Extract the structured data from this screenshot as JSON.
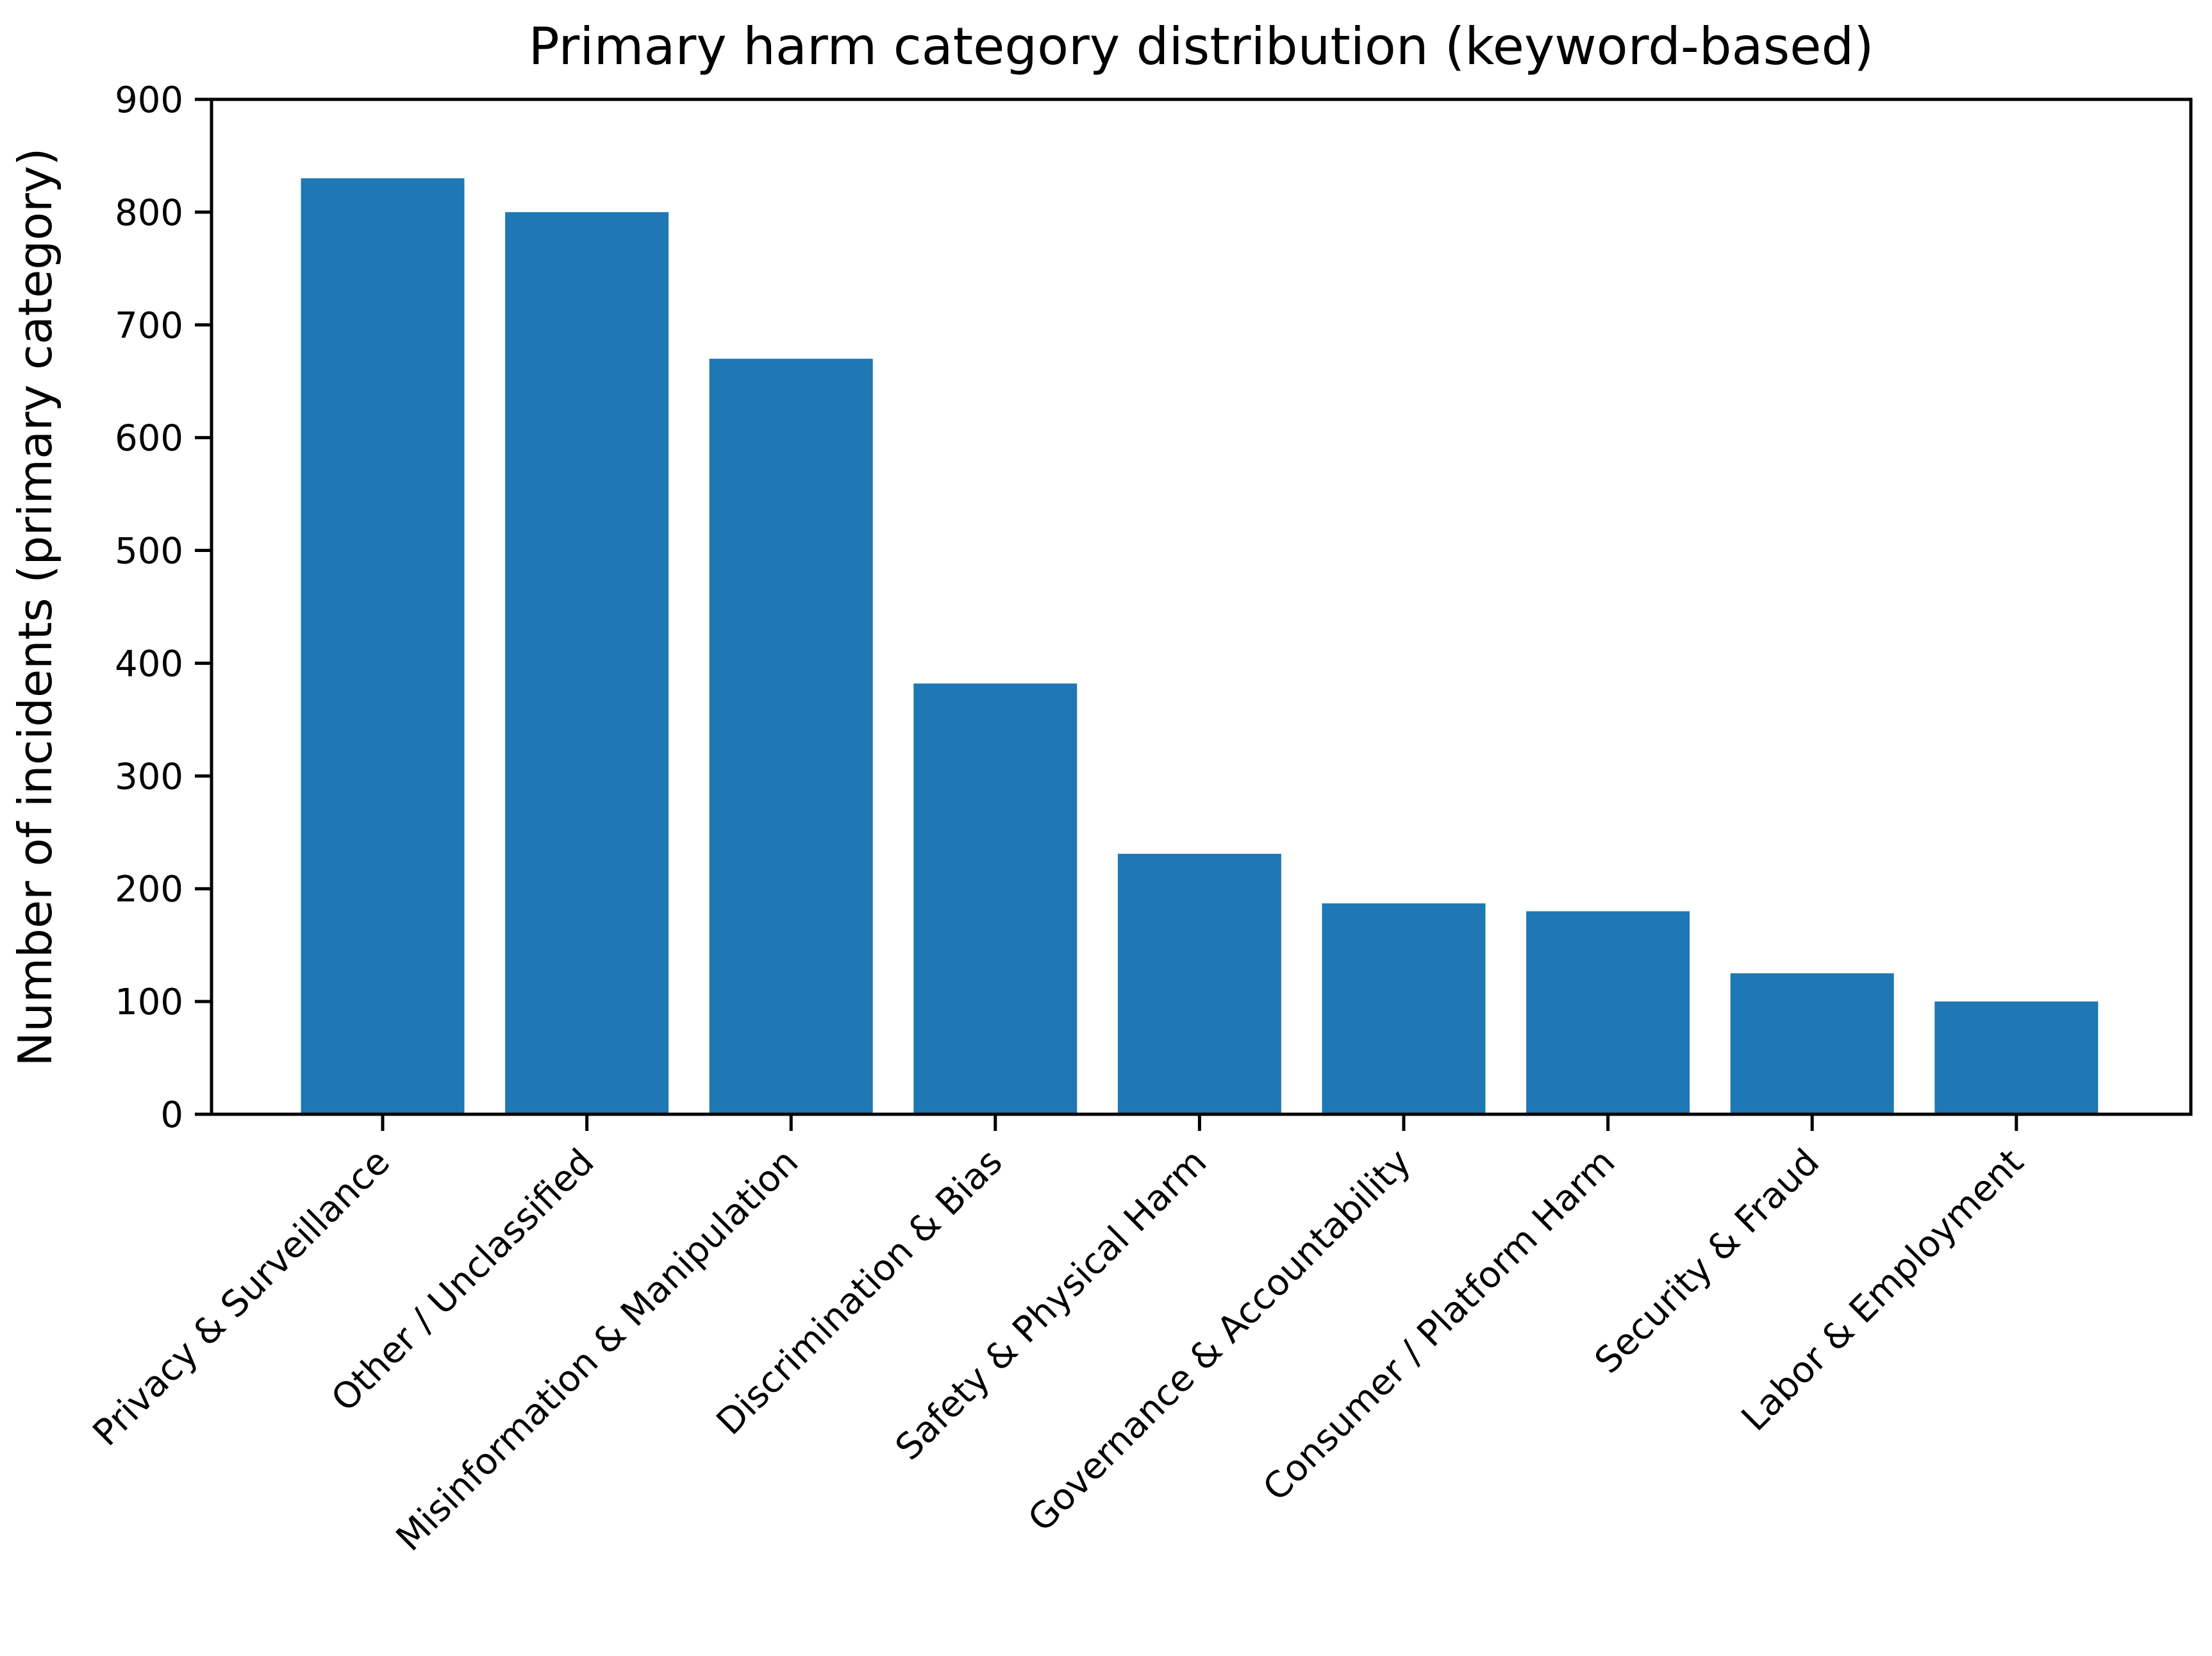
{
  "chart_data": {
    "type": "bar",
    "title": "Primary harm category distribution (keyword-based)",
    "xlabel": "",
    "ylabel": "Number of incidents (primary category)",
    "categories": [
      "Privacy & Surveillance",
      "Other / Unclassified",
      "Misinformation & Manipulation",
      "Discrimination & Bias",
      "Safety & Physical Harm",
      "Governance & Accountability",
      "Consumer / Platform Harm",
      "Security & Fraud",
      "Labor & Employment"
    ],
    "values": [
      830,
      800,
      670,
      382,
      231,
      187,
      180,
      125,
      100
    ],
    "ylim": [
      0,
      900
    ],
    "yticks": [
      "0",
      "100",
      "200",
      "300",
      "400",
      "500",
      "600",
      "700",
      "800",
      "900"
    ],
    "bar_color": "#1f77b4",
    "grid": false,
    "legend": "none"
  }
}
